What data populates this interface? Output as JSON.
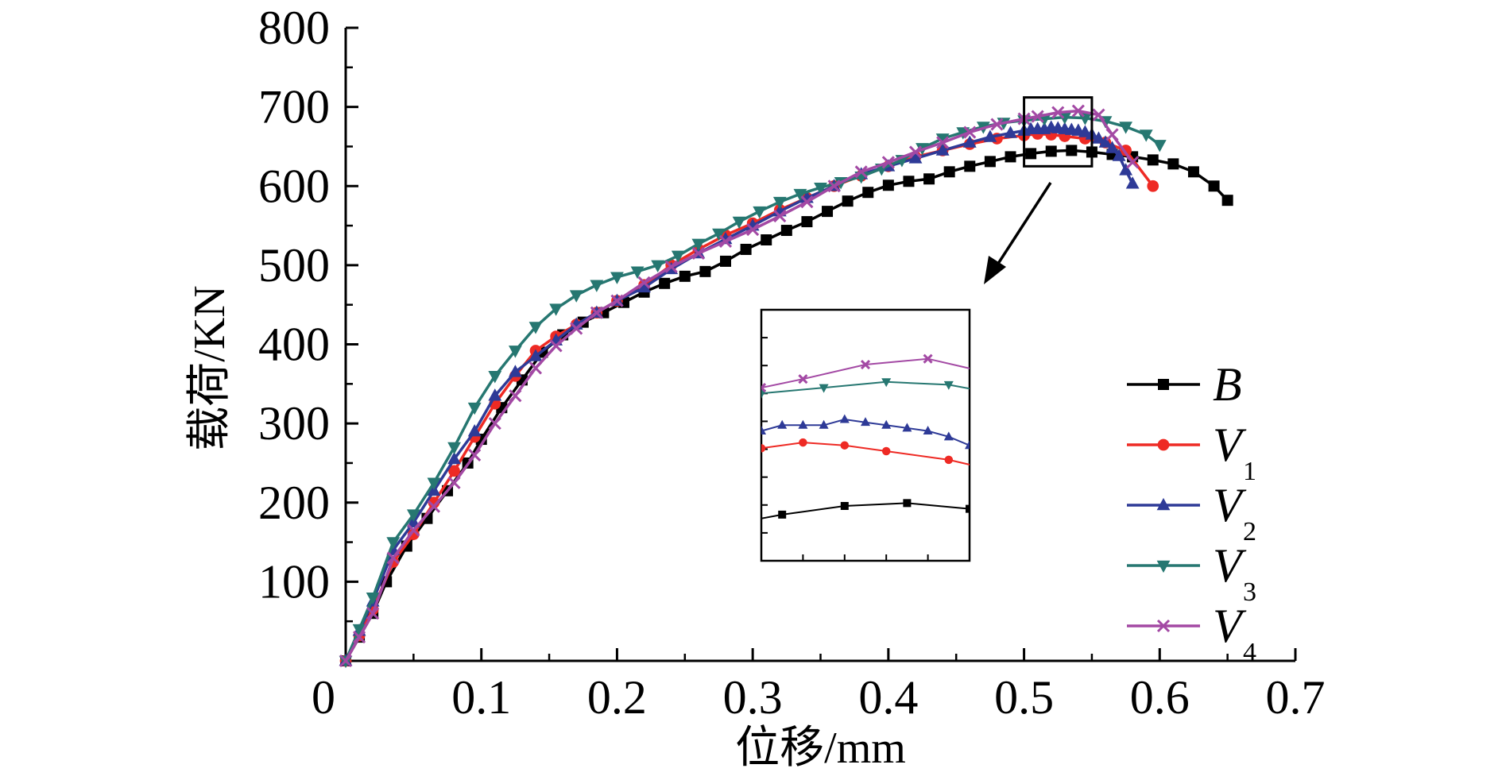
{
  "chart_data": {
    "type": "line",
    "title": "",
    "xlabel": "位移/mm",
    "ylabel": "载荷/KN",
    "xlim": [
      0,
      0.7
    ],
    "ylim": [
      0,
      800
    ],
    "xticks": [
      0,
      0.1,
      0.2,
      0.3,
      0.4,
      0.5,
      0.6,
      0.7
    ],
    "xtick_labels": [
      "0",
      "0.1",
      "0.2",
      "0.3",
      "0.4",
      "0.5",
      "0.6",
      "0.7"
    ],
    "yticks": [
      100,
      200,
      300,
      400,
      500,
      600,
      700,
      800
    ],
    "ytick_labels": [
      "100",
      "200",
      "300",
      "400",
      "500",
      "600",
      "700",
      "800"
    ],
    "grid": false,
    "legend_position": "right",
    "zoom_window": {
      "x": [
        0.5,
        0.55
      ],
      "y": [
        625,
        712
      ]
    },
    "series": [
      {
        "name": "B",
        "sub": "",
        "color": "#000000",
        "marker": "square",
        "x": [
          0,
          0.01,
          0.02,
          0.03,
          0.045,
          0.06,
          0.075,
          0.09,
          0.1,
          0.115,
          0.13,
          0.145,
          0.16,
          0.175,
          0.19,
          0.205,
          0.22,
          0.235,
          0.25,
          0.265,
          0.28,
          0.295,
          0.31,
          0.325,
          0.34,
          0.355,
          0.37,
          0.385,
          0.4,
          0.415,
          0.43,
          0.445,
          0.46,
          0.475,
          0.49,
          0.505,
          0.52,
          0.535,
          0.55,
          0.565,
          0.58,
          0.595,
          0.61,
          0.625,
          0.64,
          0.65
        ],
        "y": [
          0,
          30,
          60,
          100,
          145,
          180,
          215,
          250,
          280,
          320,
          355,
          390,
          412,
          428,
          440,
          453,
          466,
          477,
          486,
          492,
          505,
          520,
          532,
          544,
          555,
          568,
          581,
          592,
          601,
          606,
          609,
          618,
          625,
          631,
          637,
          641,
          644,
          645,
          643,
          640,
          637,
          633,
          628,
          618,
          600,
          582
        ]
      },
      {
        "name": "V",
        "sub": "1",
        "color": "#ee2a24",
        "marker": "circle",
        "x": [
          0,
          0.01,
          0.02,
          0.035,
          0.05,
          0.065,
          0.08,
          0.095,
          0.11,
          0.125,
          0.14,
          0.155,
          0.17,
          0.185,
          0.2,
          0.22,
          0.24,
          0.26,
          0.28,
          0.3,
          0.32,
          0.34,
          0.36,
          0.38,
          0.4,
          0.42,
          0.44,
          0.46,
          0.48,
          0.5,
          0.51,
          0.52,
          0.53,
          0.545,
          0.56,
          0.575,
          0.595
        ],
        "y": [
          0,
          32,
          65,
          125,
          160,
          200,
          240,
          283,
          325,
          360,
          392,
          410,
          425,
          440,
          455,
          475,
          500,
          520,
          538,
          553,
          570,
          585,
          600,
          613,
          625,
          637,
          645,
          653,
          660,
          664,
          666,
          665,
          663,
          660,
          655,
          645,
          600
        ]
      },
      {
        "name": "V",
        "sub": "2",
        "color": "#2e3a97",
        "marker": "triangle-up",
        "x": [
          0,
          0.01,
          0.02,
          0.035,
          0.05,
          0.065,
          0.08,
          0.095,
          0.11,
          0.125,
          0.14,
          0.155,
          0.17,
          0.185,
          0.2,
          0.22,
          0.24,
          0.26,
          0.28,
          0.3,
          0.32,
          0.34,
          0.36,
          0.38,
          0.4,
          0.42,
          0.44,
          0.46,
          0.475,
          0.49,
          0.5,
          0.505,
          0.51,
          0.515,
          0.52,
          0.525,
          0.53,
          0.535,
          0.54,
          0.545,
          0.55,
          0.555,
          0.56,
          0.565,
          0.57,
          0.575,
          0.58
        ],
        "y": [
          0,
          38,
          75,
          140,
          175,
          215,
          255,
          290,
          335,
          365,
          385,
          405,
          425,
          440,
          455,
          472,
          495,
          515,
          533,
          550,
          568,
          585,
          600,
          615,
          625,
          635,
          645,
          655,
          662,
          667,
          670,
          672,
          672,
          672,
          674,
          673,
          672,
          671,
          670,
          668,
          665,
          660,
          655,
          648,
          638,
          620,
          603
        ]
      },
      {
        "name": "V",
        "sub": "3",
        "color": "#267771",
        "marker": "triangle-down",
        "x": [
          0,
          0.01,
          0.02,
          0.035,
          0.05,
          0.065,
          0.08,
          0.095,
          0.11,
          0.125,
          0.14,
          0.155,
          0.17,
          0.185,
          0.2,
          0.215,
          0.23,
          0.245,
          0.26,
          0.275,
          0.29,
          0.305,
          0.32,
          0.335,
          0.35,
          0.365,
          0.38,
          0.395,
          0.41,
          0.425,
          0.44,
          0.455,
          0.47,
          0.485,
          0.5,
          0.515,
          0.53,
          0.545,
          0.56,
          0.575,
          0.59,
          0.6
        ],
        "y": [
          0,
          40,
          80,
          150,
          185,
          225,
          270,
          320,
          360,
          392,
          422,
          445,
          462,
          475,
          485,
          492,
          500,
          512,
          527,
          540,
          555,
          568,
          580,
          590,
          598,
          605,
          612,
          622,
          633,
          648,
          660,
          668,
          675,
          680,
          683,
          685,
          687,
          686,
          682,
          675,
          665,
          652
        ]
      },
      {
        "name": "V",
        "sub": "4",
        "color": "#a349a4",
        "marker": "x",
        "x": [
          0,
          0.01,
          0.02,
          0.035,
          0.05,
          0.065,
          0.08,
          0.095,
          0.11,
          0.125,
          0.14,
          0.155,
          0.17,
          0.185,
          0.2,
          0.22,
          0.24,
          0.26,
          0.28,
          0.3,
          0.32,
          0.34,
          0.36,
          0.38,
          0.4,
          0.42,
          0.44,
          0.46,
          0.48,
          0.5,
          0.51,
          0.525,
          0.54,
          0.555,
          0.565,
          0.58
        ],
        "y": [
          0,
          30,
          60,
          130,
          165,
          195,
          225,
          260,
          300,
          335,
          370,
          398,
          420,
          440,
          455,
          478,
          498,
          515,
          530,
          545,
          562,
          580,
          600,
          618,
          630,
          643,
          655,
          668,
          678,
          685,
          688,
          693,
          695,
          690,
          665,
          630
        ]
      }
    ]
  }
}
